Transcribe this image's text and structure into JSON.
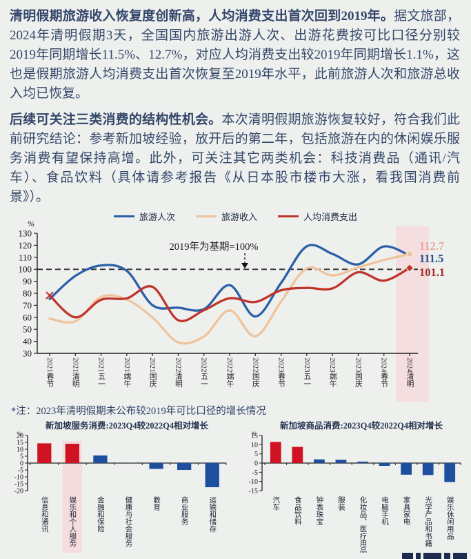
{
  "palette": {
    "page_bg": "#eef0ee",
    "text_navy": "#35486a",
    "axis": "#222222",
    "band_pink": "#f5d9db",
    "logo_navy": "#1c2b4e",
    "dashed_line": "#3a3a3a"
  },
  "text": {
    "para1_heading": "清明假期旅游收入恢复度创新高，人均消费支出首次回到2019年。",
    "para1_body": "据文旅部，2024年清明假期3天，全国国内旅游出游人次、出游花费按可比口径分别较2019年同期增长11.5%、12.7%，对应人均消费支出较2019年同期增长1.1%，这也是假期旅游人均消费支出首次恢复至2019年水平，此前旅游人次和旅游总收入均已恢复。",
    "para2_heading": "后续可关注三类消费的结构性机会。",
    "para2_body": "本次清明假期旅游恢复较好，符合我们此前研究结论：参考新加坡经验，放开后的第二年，包括旅游在内的休闲娱乐服务消费有望保持高增。此外，可关注其它两类机会：科技消费品（通讯/汽车）、食品饮料（具体请参考报告《从日本股市楼市大涨，看我国消费前景》）。",
    "footnote": "*注：2023年清明假期未公布较2019年可比口径的增长情况"
  },
  "chart_data": [
    {
      "type": "line",
      "unit": "%",
      "annotation": "2019年为基期=100%",
      "baseline": 100,
      "ylim": [
        30,
        130
      ],
      "ytick_step": 10,
      "grid": false,
      "legend_position": "top",
      "categories": [
        "2021春节",
        "2021清明",
        "2021五一",
        "2021端午",
        "2021国庆",
        "2022清明",
        "2022五一",
        "2022端午",
        "2022国庆",
        "2023春节",
        "2023五一",
        "2023端午",
        "2023国庆",
        "2024春节",
        "2024清明"
      ],
      "series": [
        {
          "name": "旅游人次",
          "color": "#2b5fa7",
          "end_label": "111.5",
          "end_label_color": "#24548f",
          "values": [
            75.3,
            94.5,
            103.2,
            98.7,
            70.1,
            68.0,
            66.8,
            86.8,
            60.7,
            88.6,
            119.1,
            112.8,
            104.1,
            119.0,
            111.5
          ]
        },
        {
          "name": "旅游收入",
          "color": "#efc39b",
          "end_label": "112.7",
          "end_label_color": "#eba9a0",
          "end_marker": "diamond",
          "values": [
            58.9,
            56.7,
            77.0,
            74.8,
            59.9,
            39.2,
            44.0,
            65.8,
            44.2,
            73.1,
            100.7,
            94.9,
            101.5,
            107.7,
            112.7
          ]
        },
        {
          "name": "人均消费支出",
          "color": "#bf342c",
          "end_label": "101.1",
          "end_label_color": "#a23028",
          "end_marker": "diamond",
          "start_marker": "x",
          "values": [
            78.2,
            60.0,
            74.6,
            75.8,
            85.4,
            57.6,
            65.9,
            75.8,
            72.8,
            82.5,
            84.5,
            84.1,
            97.5,
            90.5,
            101.1
          ]
        }
      ],
      "highlight_last_category": true
    },
    {
      "type": "bar",
      "title": "新加坡服务消费:2023Q4较2022Q4相对增长",
      "unit": "%",
      "ylim": [
        -20,
        20
      ],
      "ytick_step": 5,
      "categories": [
        "信息和通讯",
        "娱乐和个人服务",
        "金融和保险",
        "健康与社会服务",
        "教育",
        "商业服务",
        "运输和储存"
      ],
      "values": [
        14.3,
        14.0,
        5.5,
        0.2,
        -4.2,
        -5.0,
        -17.5
      ],
      "bar_colors": [
        "#cf1322",
        "#cf1322",
        "#1d4f9e",
        "#1d4f9e",
        "#1d4f9e",
        "#1d4f9e",
        "#1d4f9e"
      ],
      "highlight_index": 1
    },
    {
      "type": "bar",
      "title": "新加坡商品消费:2023Q4较2022Q4相对增长",
      "unit": "%",
      "ylim": [
        -15,
        15
      ],
      "ytick_step": 5,
      "categories": [
        "汽车",
        "食品饮料",
        "钟表珠宝",
        "服装",
        "化妆品、医疗用品",
        "电脑手机",
        "家具家电",
        "光学产品和书籍",
        "娱乐休闲用品"
      ],
      "values": [
        11.5,
        8.8,
        2.0,
        1.8,
        0.8,
        -1.5,
        -6.3,
        -6.5,
        -10.3
      ],
      "bar_colors": [
        "#cf1322",
        "#cf1322",
        "#1d4f9e",
        "#1d4f9e",
        "#1d4f9e",
        "#1d4f9e",
        "#1d4f9e",
        "#1d4f9e",
        "#1d4f9e"
      ],
      "highlight_index": -1
    }
  ]
}
